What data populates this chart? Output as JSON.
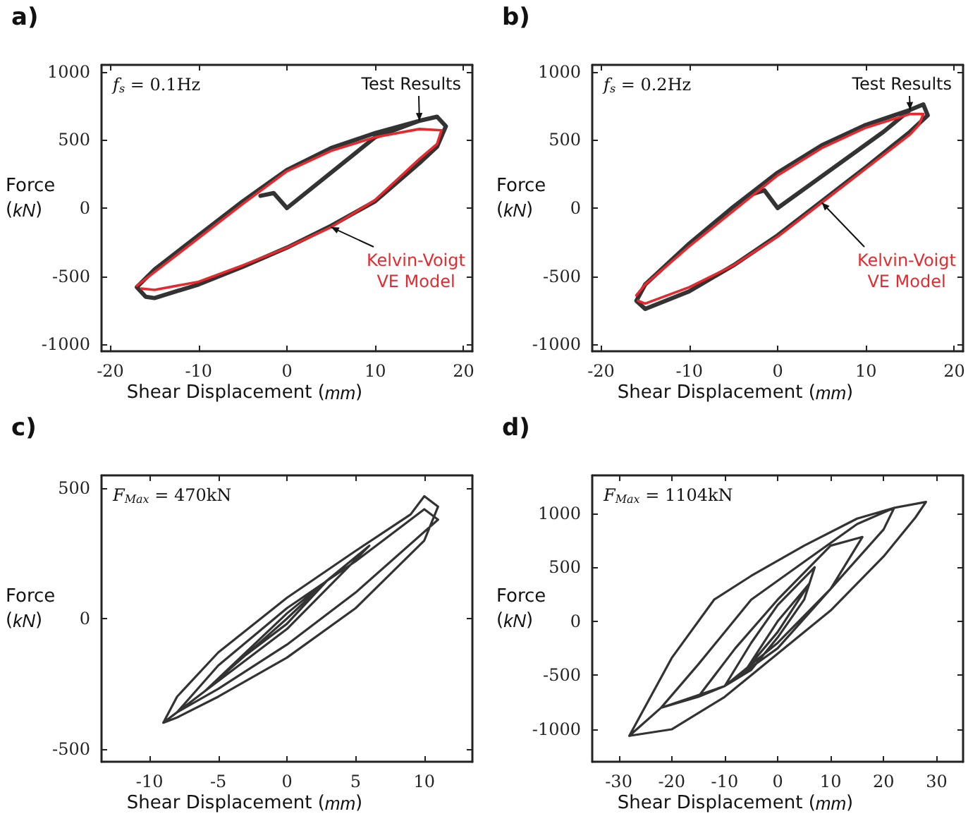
{
  "chart_data": [
    {
      "type": "line",
      "title": "a)",
      "xlabel": "Shear Displacement (mm)",
      "ylabel": "Force (kN)",
      "annotations": [
        "f$_{s}$ = 0.1Hz"
      ],
      "xlim": [
        -21,
        21
      ],
      "ylim": [
        -1050,
        1050
      ],
      "xticks": [
        -20,
        -10,
        0,
        10,
        20
      ],
      "yticks": [
        -1000,
        -500,
        0,
        500,
        1000
      ],
      "grid": false,
      "legend": false,
      "marker": "none",
      "series": [
        {
          "name": "Test Results",
          "color": "#333333",
          "x": [
            -3,
            -1.5,
            0,
            10,
            15,
            17,
            18,
            17,
            15,
            10,
            5,
            0,
            -5,
            -10,
            -15,
            -16,
            -17,
            -15,
            -10,
            -5,
            0,
            5,
            10,
            15,
            17
          ],
          "values": [
            90,
            110,
            0,
            520,
            640,
            670,
            600,
            450,
            330,
            50,
            -130,
            -290,
            -430,
            -560,
            -660,
            -650,
            -580,
            -450,
            -200,
            50,
            280,
            440,
            550,
            640,
            670
          ]
        },
        {
          "name": "Kelvin-Voigt VE Model",
          "color": "#e8282d",
          "x": [
            -17,
            -15,
            -10,
            -5,
            0,
            5,
            10,
            15,
            17.5,
            17,
            15,
            10,
            5,
            0,
            -5,
            -10,
            -15,
            -16.5
          ],
          "values": [
            -570,
            -470,
            -220,
            30,
            270,
            420,
            520,
            580,
            570,
            470,
            360,
            60,
            -140,
            -290,
            -420,
            -540,
            -600,
            -590
          ]
        }
      ]
    },
    {
      "type": "line",
      "title": "b)",
      "xlabel": "Shear Displacement (mm)",
      "ylabel": "Force (kN)",
      "annotations": [
        "f$_{s}$ = 0.2Hz"
      ],
      "xlim": [
        -21,
        21
      ],
      "ylim": [
        -1050,
        1050
      ],
      "xticks": [
        -20,
        -10,
        0,
        10,
        20
      ],
      "yticks": [
        -1000,
        -500,
        0,
        500,
        1000
      ],
      "grid": false,
      "legend": false,
      "marker": "none",
      "series": [
        {
          "name": "Test Results",
          "color": "#333333",
          "x": [
            -3,
            -1.5,
            0,
            12,
            15,
            16.5,
            17,
            15,
            10,
            5,
            0,
            -5,
            -10,
            -15,
            -16,
            -15,
            -10,
            -5,
            0,
            5,
            10,
            15,
            16.5
          ],
          "values": [
            100,
            130,
            0,
            560,
            720,
            760,
            680,
            560,
            300,
            50,
            -200,
            -420,
            -610,
            -740,
            -680,
            -560,
            -260,
            10,
            260,
            460,
            610,
            720,
            760
          ]
        },
        {
          "name": "Kelvin-Voigt VE Model",
          "color": "#e8282d",
          "x": [
            -16,
            -15,
            -10,
            -5,
            0,
            5,
            10,
            15,
            16.5,
            16,
            15,
            10,
            5,
            0,
            -5,
            -10,
            -15,
            -15.8
          ],
          "values": [
            -640,
            -560,
            -280,
            -20,
            240,
            440,
            590,
            690,
            690,
            610,
            540,
            290,
            40,
            -210,
            -420,
            -580,
            -700,
            -680
          ]
        }
      ]
    },
    {
      "type": "line",
      "title": "c)",
      "xlabel": "Shear Displacement (mm)",
      "ylabel": "Force (kN)",
      "annotations": [
        "F$_{Max}$ = 470kN"
      ],
      "xlim": [
        -13.5,
        13.5
      ],
      "ylim": [
        -550,
        550
      ],
      "xticks": [
        -10,
        -5,
        0,
        5,
        10
      ],
      "yticks": [
        -500,
        0,
        500
      ],
      "grid": false,
      "legend": false,
      "marker": "none",
      "series": [
        {
          "color": "#333333",
          "x": [
            -9,
            -8,
            -5,
            0,
            5,
            9,
            10,
            11,
            10,
            5,
            0,
            -5,
            -8,
            -9,
            -8,
            -5,
            0,
            5,
            10,
            11,
            5,
            0,
            -5,
            -8,
            -6,
            0,
            6,
            0,
            -6,
            -3,
            0,
            3,
            0,
            -3
          ],
          "values": [
            -400,
            -300,
            -130,
            80,
            260,
            400,
            470,
            430,
            300,
            40,
            -150,
            -300,
            -380,
            -400,
            -360,
            -180,
            40,
            220,
            420,
            380,
            100,
            -100,
            -270,
            -360,
            -280,
            20,
            280,
            -40,
            -280,
            -140,
            0,
            150,
            -20,
            -140
          ]
        }
      ]
    },
    {
      "type": "line",
      "title": "d)",
      "xlabel": "Shear Displacement (mm)",
      "ylabel": "Force (kN)",
      "annotations": [
        "F$_{Max}$ = 1104kN"
      ],
      "xlim": [
        -35,
        35
      ],
      "ylim": [
        -1300,
        1350
      ],
      "xticks": [
        -30,
        -20,
        -10,
        0,
        10,
        20,
        30
      ],
      "yticks": [
        -1000,
        -500,
        0,
        500,
        1000
      ],
      "grid": false,
      "legend": false,
      "marker": "none",
      "series": [
        {
          "color": "#333333",
          "x": [
            -28,
            -20,
            -12,
            -5,
            5,
            15,
            22,
            28,
            26,
            20,
            10,
            0,
            -10,
            -20,
            -28,
            -22,
            -15,
            -5,
            5,
            15,
            22,
            20,
            10,
            0,
            -10,
            -22,
            -15,
            -8,
            0,
            10,
            16,
            10,
            0,
            -10,
            -15,
            -10,
            -5,
            0,
            7,
            5,
            0,
            -5,
            -10,
            -6,
            0,
            6,
            0,
            -6
          ],
          "values": [
            -1060,
            -340,
            200,
            420,
            700,
            950,
            1050,
            1104,
            960,
            600,
            100,
            -300,
            -700,
            -1000,
            -1060,
            -800,
            -400,
            200,
            550,
            900,
            1050,
            850,
            300,
            -200,
            -600,
            -800,
            -700,
            -250,
            200,
            700,
            780,
            300,
            -250,
            -600,
            -700,
            -600,
            -200,
            150,
            500,
            200,
            -150,
            -450,
            -600,
            -450,
            0,
            350,
            -100,
            -450
          ]
        }
      ]
    }
  ]
}
